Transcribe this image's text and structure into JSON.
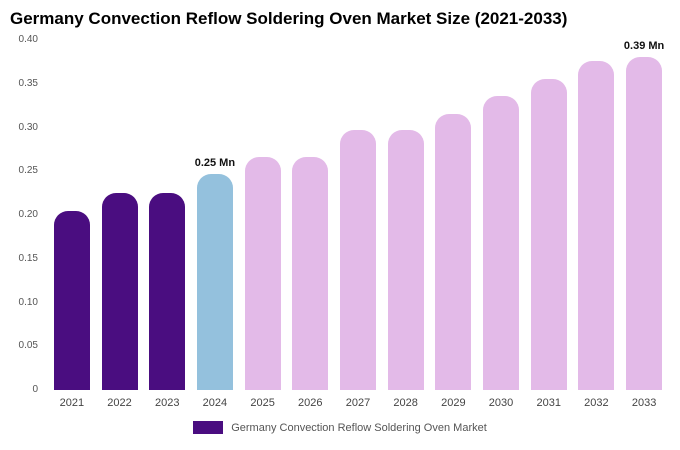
{
  "chart_data": {
    "type": "bar",
    "title": "Germany Convection Reflow Soldering Oven Market Size (2021-2033)",
    "categories": [
      "2021",
      "2022",
      "2023",
      "2024",
      "2025",
      "2026",
      "2027",
      "2028",
      "2029",
      "2030",
      "2031",
      "2032",
      "2033"
    ],
    "values": [
      0.205,
      0.225,
      0.225,
      0.247,
      0.266,
      0.266,
      0.297,
      0.297,
      0.316,
      0.336,
      0.356,
      0.376,
      0.387
    ],
    "bar_colors": [
      "#4a0d80",
      "#4a0d80",
      "#4a0d80",
      "#94c1dd",
      "#e3bae8",
      "#e3bae8",
      "#e3bae8",
      "#e3bae8",
      "#e3bae8",
      "#e3bae8",
      "#e3bae8",
      "#e3bae8",
      "#e3bae8"
    ],
    "annotations": [
      {
        "index": 3,
        "text": "0.25 Mn"
      },
      {
        "index": 12,
        "text": "0.39 Mn"
      }
    ],
    "xlabel": "",
    "ylabel": "",
    "ylim": [
      0,
      0.4
    ],
    "yticks": [
      0,
      0.05,
      0.1,
      0.15,
      0.2,
      0.25,
      0.3,
      0.35,
      0.4
    ],
    "ytick_labels": [
      "0",
      "0.05",
      "0.10",
      "0.15",
      "0.20",
      "0.25",
      "0.30",
      "0.35",
      "0.40"
    ],
    "grid": false,
    "legend_position": "bottom",
    "legend": [
      {
        "label": "Germany Convection Reflow Soldering Oven Market",
        "color": "#4a0d80"
      }
    ]
  }
}
